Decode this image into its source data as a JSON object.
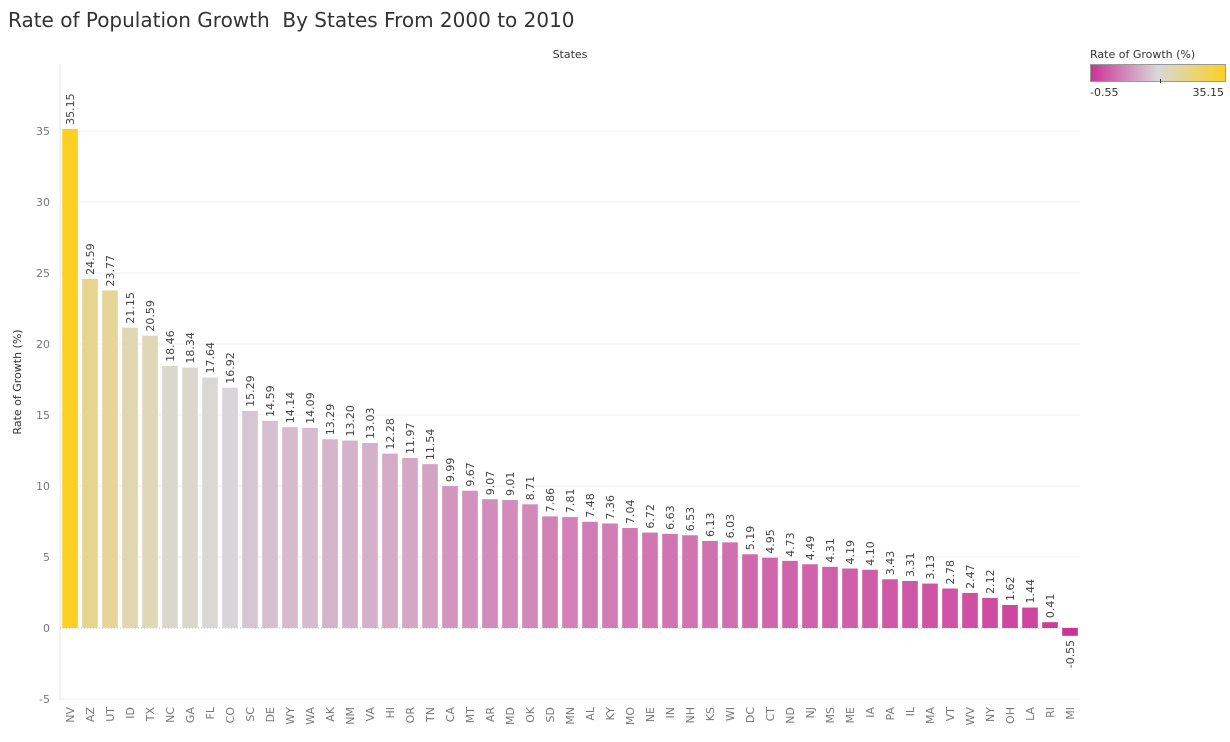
{
  "chart_data": {
    "type": "bar",
    "title": "Rate of Population Growth  By States From 2000 to 2010",
    "xlabel": "States",
    "ylabel": "Rate of Growth (%)",
    "ylim": [
      -5.5,
      40
    ],
    "yticks": [
      -5,
      0,
      5,
      10,
      15,
      20,
      25,
      30,
      35
    ],
    "grid": true,
    "categories": [
      "NV",
      "AZ",
      "UT",
      "ID",
      "TX",
      "NC",
      "GA",
      "FL",
      "CO",
      "SC",
      "DE",
      "WY",
      "WA",
      "AK",
      "NM",
      "VA",
      "HI",
      "OR",
      "TN",
      "CA",
      "MT",
      "AR",
      "MD",
      "OK",
      "SD",
      "MN",
      "AL",
      "KY",
      "MO",
      "NE",
      "IN",
      "NH",
      "KS",
      "WI",
      "DC",
      "CT",
      "ND",
      "NJ",
      "MS",
      "ME",
      "IA",
      "PA",
      "IL",
      "MA",
      "VT",
      "WV",
      "NY",
      "OH",
      "LA",
      "RI",
      "MI"
    ],
    "values": [
      35.15,
      24.59,
      23.77,
      21.15,
      20.59,
      18.46,
      18.34,
      17.64,
      16.92,
      15.29,
      14.59,
      14.14,
      14.09,
      13.29,
      13.2,
      13.03,
      12.28,
      11.97,
      11.54,
      9.99,
      9.67,
      9.07,
      9.01,
      8.71,
      7.86,
      7.81,
      7.48,
      7.36,
      7.04,
      6.72,
      6.63,
      6.53,
      6.13,
      6.03,
      5.19,
      4.95,
      4.73,
      4.49,
      4.31,
      4.19,
      4.1,
      3.43,
      3.31,
      3.13,
      2.78,
      2.47,
      2.12,
      1.62,
      1.44,
      0.41,
      -0.55
    ],
    "value_labels": [
      "35.15",
      "24.59",
      "23.77",
      "21.15",
      "20.59",
      "18.46",
      "18.34",
      "17.64",
      "16.92",
      "15.29",
      "14.59",
      "14.14",
      "14.09",
      "13.29",
      "13.20",
      "13.03",
      "12.28",
      "11.97",
      "11.54",
      "9.99",
      "9.67",
      "9.07",
      "9.01",
      "8.71",
      "7.86",
      "7.81",
      "7.48",
      "7.36",
      "7.04",
      "6.72",
      "6.63",
      "6.53",
      "6.13",
      "6.03",
      "5.19",
      "4.95",
      "4.73",
      "4.49",
      "4.31",
      "4.19",
      "4.10",
      "3.43",
      "3.31",
      "3.13",
      "2.78",
      "2.47",
      "2.12",
      "1.62",
      "1.44",
      "0.41",
      "-0.55"
    ],
    "colors": {
      "low": "#cc3399",
      "mid": "#d8d8d8",
      "high": "#fcd022"
    },
    "legend": {
      "title": "Rate of Growth (%)",
      "min_label": "-0.55",
      "max_label": "35.15",
      "placement": "top-right"
    }
  }
}
